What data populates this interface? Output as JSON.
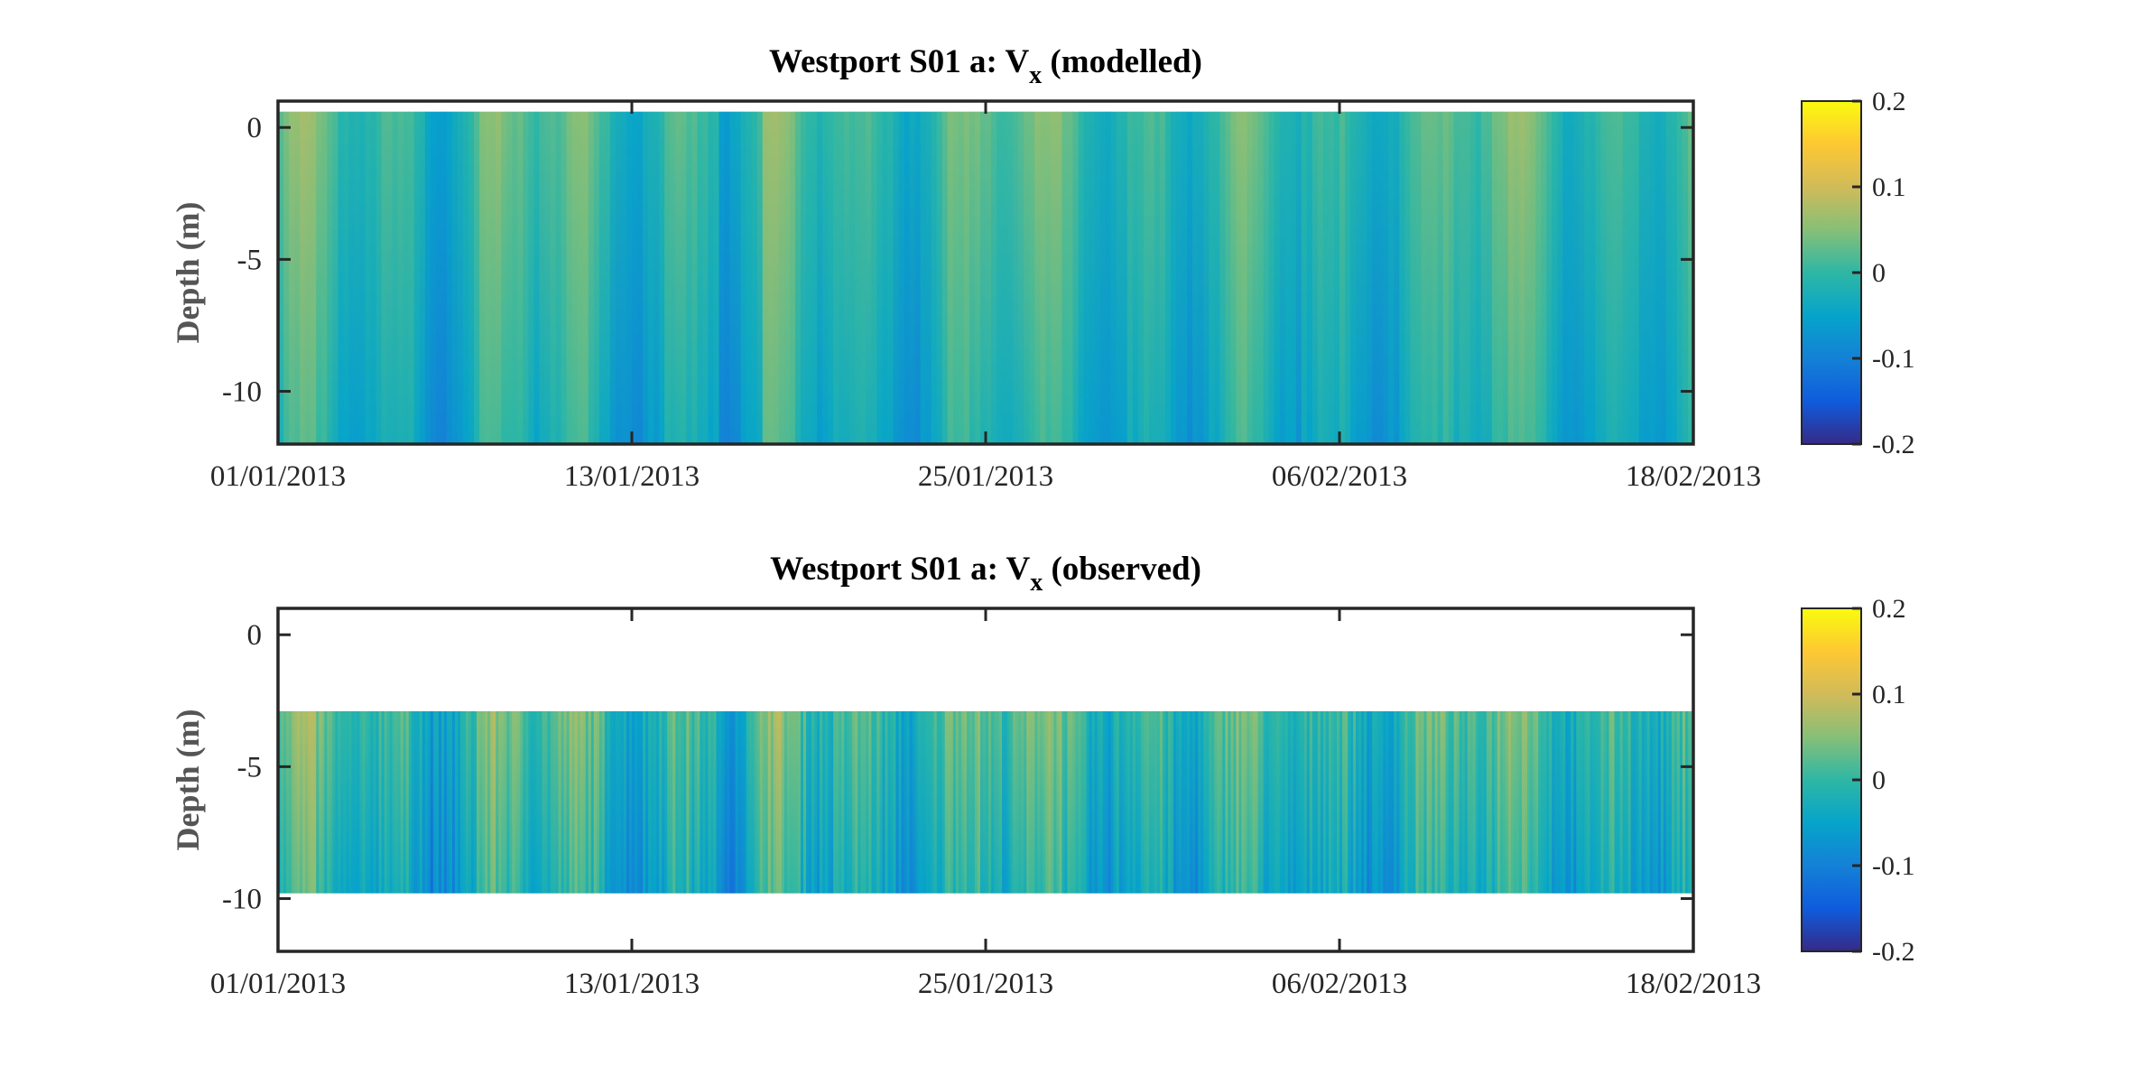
{
  "chart_data": [
    {
      "type": "heatmap",
      "title_main": "Westport S01 a: V",
      "title_sub": "x",
      "title_suffix": "(modelled)",
      "xlabel": "",
      "ylabel": "Depth (m)",
      "x_ticks": [
        "01/01/2013",
        "13/01/2013",
        "25/01/2013",
        "06/02/2013",
        "18/02/2013"
      ],
      "xlim": [
        "01/01/2013",
        "18/02/2013"
      ],
      "y_ticks": [
        0,
        -5,
        -10
      ],
      "ylim": [
        -12,
        1
      ],
      "data_depth_range": [
        -12,
        0.6
      ],
      "colorbar": {
        "ticks": [
          0.2,
          0.1,
          0,
          -0.1,
          -0.2
        ],
        "labels": [
          "0.2",
          "0.1",
          "0",
          "-0.1",
          "-0.2"
        ],
        "range": [
          -0.2,
          0.2
        ],
        "colormap": "parula"
      }
    },
    {
      "type": "heatmap",
      "title_main": "Westport S01 a: V",
      "title_sub": "x",
      "title_suffix": "(observed)",
      "xlabel": "",
      "ylabel": "Depth (m)",
      "x_ticks": [
        "01/01/2013",
        "13/01/2013",
        "25/01/2013",
        "06/02/2013",
        "18/02/2013"
      ],
      "xlim": [
        "01/01/2013",
        "18/02/2013"
      ],
      "y_ticks": [
        0,
        -5,
        -10
      ],
      "ylim": [
        -12,
        1
      ],
      "data_depth_range": [
        -9.8,
        -2.9
      ],
      "colorbar": {
        "ticks": [
          0.2,
          0.1,
          0,
          -0.1,
          -0.2
        ],
        "labels": [
          "0.2",
          "0.1",
          "0",
          "-0.1",
          "-0.2"
        ],
        "range": [
          -0.2,
          0.2
        ],
        "colormap": "parula"
      }
    }
  ]
}
